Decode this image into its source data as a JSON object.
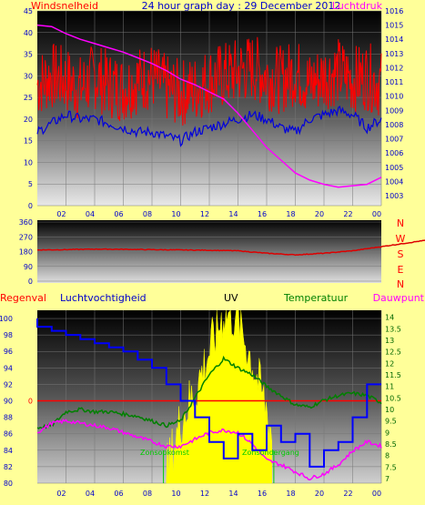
{
  "colors": {
    "background": "#ffff99",
    "wind": "#ff0000",
    "wind_avg": "#0000dd",
    "pressure": "#ff00ff",
    "direction": "#dd0000",
    "humidity": "#0000ff",
    "temperature": "#008000",
    "dewpoint": "#ff00ff",
    "uv": "#ffff00",
    "rain": "#ff0000",
    "tick_text": "#0000cc",
    "uv_marker": "#00cc00"
  },
  "header": {
    "left_label": "Windsnelheid",
    "center_label": "24 hour graph day : 29 December 2012",
    "right_label": "Luchtdruk"
  },
  "mid": {
    "compass": [
      "N",
      "W",
      "S",
      "E",
      "N"
    ]
  },
  "bottom_header": {
    "rain_label": "Regenval",
    "humidity_label": "Luchtvochtigheid",
    "uv_label": "UV",
    "temperature_label": "Temperatuur",
    "dewpoint_label": "Dauwpunt"
  },
  "markers": {
    "sunrise": "Zonsopkomst",
    "sunset": "Zonsondergang"
  },
  "chart_data": [
    {
      "type": "line",
      "title": "24 hour graph day : 29 December 2012",
      "xlabel": "",
      "x_ticks": [
        "02",
        "04",
        "06",
        "08",
        "10",
        "12",
        "14",
        "16",
        "18",
        "20",
        "22",
        "00"
      ],
      "y_left_label": "Windsnelheid",
      "y_left_ticks": [
        0,
        5,
        10,
        15,
        20,
        25,
        30,
        35,
        40,
        45
      ],
      "y_left_lim": [
        0,
        45
      ],
      "y_right_label": "Luchtdruk",
      "y_right_ticks": [
        1003,
        1004,
        1005,
        1006,
        1007,
        1008,
        1009,
        1010,
        1011,
        1012,
        1013,
        1014,
        1015,
        1016
      ],
      "y_right_lim": [
        1002.3,
        1016
      ],
      "x_hours": [
        0,
        1,
        2,
        3,
        4,
        5,
        6,
        7,
        8,
        9,
        10,
        11,
        12,
        13,
        14,
        15,
        16,
        17,
        18,
        19,
        20,
        21,
        22,
        23,
        24
      ],
      "series": [
        {
          "name": "Windsnelheid",
          "axis": "left",
          "values": [
            28,
            30,
            29,
            27,
            30,
            28,
            27,
            29,
            30,
            27,
            26,
            27,
            29,
            30,
            31,
            32,
            30,
            29,
            31,
            28,
            30,
            31,
            29,
            30,
            28
          ]
        },
        {
          "name": "",
          "axis": "left",
          "values": [
            17,
            19,
            21,
            20,
            20,
            19,
            18,
            17,
            17,
            16,
            15,
            17,
            18,
            19,
            20,
            21,
            20,
            18,
            17,
            20,
            21,
            22,
            21,
            18,
            20
          ]
        },
        {
          "name": "Luchtdruk",
          "axis": "right",
          "values": [
            1015.0,
            1014.9,
            1014.4,
            1014.0,
            1013.7,
            1013.4,
            1013.1,
            1012.7,
            1012.3,
            1011.8,
            1011.2,
            1010.8,
            1010.3,
            1009.8,
            1008.8,
            1007.6,
            1006.4,
            1005.5,
            1004.6,
            1004.1,
            1003.8,
            1003.6,
            1003.7,
            1003.8,
            1004.3
          ]
        }
      ]
    },
    {
      "type": "line",
      "title": "",
      "x_hours": [
        0,
        2,
        4,
        6,
        8,
        10,
        12,
        14,
        16,
        18,
        20,
        22,
        24
      ],
      "y_ticks": [
        0,
        90,
        180,
        270,
        360
      ],
      "y_lim": [
        0,
        360
      ],
      "compass_labels": [
        "N",
        "W",
        "S",
        "E",
        "N"
      ],
      "series": [
        {
          "name": "",
          "values": [
            190,
            192,
            195,
            194,
            192,
            190,
            188,
            185,
            170,
            160,
            170,
            185,
            210
          ]
        }
      ]
    },
    {
      "type": "line",
      "title": "",
      "x_ticks": [
        "02",
        "04",
        "06",
        "08",
        "10",
        "12",
        "14",
        "16",
        "18",
        "20",
        "22",
        "00"
      ],
      "y_left_label": "Luchtvochtigheid",
      "y_left_ticks": [
        80,
        82,
        84,
        86,
        88,
        90,
        92,
        94,
        96,
        98,
        100
      ],
      "y_left_lim": [
        80,
        101
      ],
      "y_right_label": "Temperatuur",
      "y_right_ticks": [
        7,
        7.5,
        8,
        8.5,
        9,
        9.5,
        10,
        10.5,
        11,
        11.5,
        12,
        12.5,
        13,
        13.5,
        14
      ],
      "y_right_lim": [
        6.8,
        14.3
      ],
      "x_hours": [
        0,
        1,
        2,
        3,
        4,
        5,
        6,
        7,
        8,
        9,
        10,
        11,
        12,
        13,
        14,
        15,
        16,
        17,
        18,
        19,
        20,
        21,
        22,
        23,
        24
      ],
      "rain_label": "Regenval",
      "rain_level": 0,
      "series": [
        {
          "name": "Luchtvochtigheid",
          "axis": "left",
          "values": [
            100,
            99,
            98.5,
            98,
            97.5,
            97,
            96.5,
            96,
            95,
            94,
            92,
            90,
            88,
            85,
            83,
            86,
            84,
            87,
            85,
            86,
            82,
            84,
            85,
            88,
            92
          ]
        },
        {
          "name": "Temperatuur",
          "axis": "right",
          "values": [
            9.2,
            9.3,
            9.9,
            10.0,
            9.9,
            9.9,
            9.8,
            9.7,
            9.5,
            9.3,
            9.5,
            10.5,
            11.5,
            12.2,
            11.8,
            11.5,
            11.0,
            10.6,
            10.2,
            10.1,
            10.4,
            10.6,
            10.7,
            10.6,
            10.3
          ]
        },
        {
          "name": "Dauwpunt",
          "axis": "right",
          "values": [
            9.0,
            9.4,
            9.5,
            9.4,
            9.3,
            9.2,
            9.0,
            8.8,
            8.6,
            8.4,
            8.4,
            8.7,
            9.0,
            9.1,
            9.0,
            8.5,
            7.8,
            7.6,
            7.3,
            7.0,
            7.2,
            7.6,
            8.2,
            8.6,
            8.4
          ]
        },
        {
          "name": "UV",
          "axis": "right",
          "values": [
            null,
            null,
            null,
            null,
            null,
            null,
            null,
            null,
            null,
            7.2,
            9.5,
            10.8,
            12.5,
            14.2,
            14.0,
            12.0,
            10.0,
            null,
            null,
            null,
            null,
            null,
            null,
            null,
            null
          ]
        }
      ]
    }
  ]
}
